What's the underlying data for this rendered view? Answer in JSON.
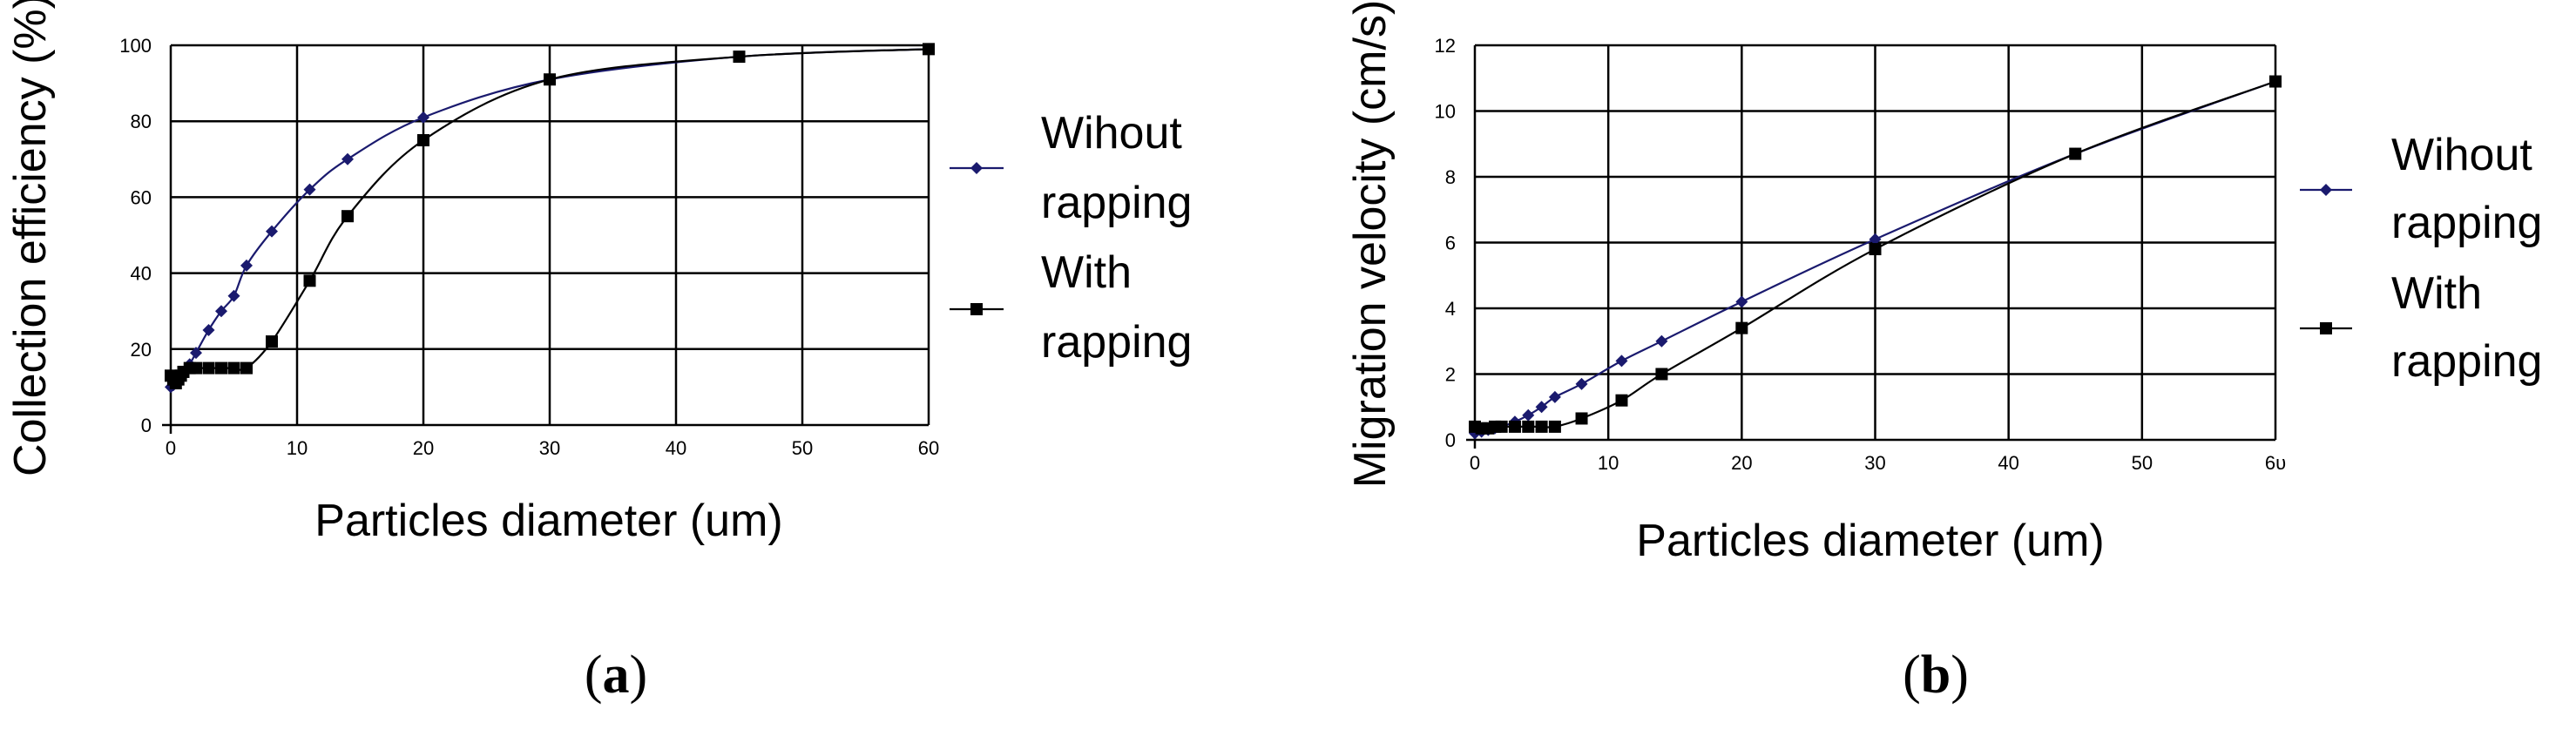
{
  "chart_data": [
    {
      "panel": "a",
      "type": "line",
      "xlabel": "Particles diameter (um)",
      "ylabel": "Collection efficiency (%)",
      "xlim": [
        0,
        60
      ],
      "ylim": [
        0,
        100
      ],
      "xticks": [
        0,
        10,
        20,
        30,
        40,
        50,
        60
      ],
      "xtick_labels": [
        "0",
        "10",
        "20",
        "30",
        "40",
        "50",
        "60"
      ],
      "yticks": [
        0,
        20,
        40,
        60,
        80,
        100
      ],
      "ytick_labels": [
        "0",
        "20",
        "40",
        "60",
        "80",
        "100"
      ],
      "grid": true,
      "legend_position": "right",
      "series": [
        {
          "name": "Wihout rapping",
          "name_lines": [
            "Wihout",
            "rapping"
          ],
          "color": "#1a1a6e",
          "marker": "diamond",
          "x": [
            0,
            0.2,
            0.4,
            0.6,
            0.8,
            1,
            1.5,
            2,
            3,
            4,
            5,
            6,
            8,
            11,
            14,
            20,
            30,
            45,
            60
          ],
          "y": [
            10,
            10.5,
            11,
            11.5,
            12.5,
            13.5,
            16,
            19,
            25,
            30,
            34,
            42,
            51,
            62,
            70,
            81,
            91,
            97,
            99
          ]
        },
        {
          "name": "With rapping",
          "name_lines": [
            "With",
            "rapping"
          ],
          "color": "#000000",
          "marker": "square",
          "x": [
            0,
            0.2,
            0.4,
            0.6,
            0.8,
            1,
            1.5,
            2,
            3,
            4,
            5,
            6,
            8,
            11,
            14,
            20,
            30,
            45,
            60
          ],
          "y": [
            13,
            12,
            11,
            12,
            13,
            14,
            15,
            15,
            15,
            15,
            15,
            15,
            22,
            38,
            55,
            75,
            91,
            97,
            99
          ]
        }
      ]
    },
    {
      "panel": "b",
      "type": "line",
      "xlabel": "Particles diameter (um)",
      "ylabel": "Migration velocity (cm/s)",
      "xlim": [
        0,
        60
      ],
      "ylim": [
        0,
        12
      ],
      "xticks": [
        0,
        10,
        20,
        30,
        40,
        50,
        60
      ],
      "xtick_labels": [
        "0",
        "10",
        "20",
        "30",
        "40",
        "50",
        "6υ"
      ],
      "yticks": [
        0,
        2,
        4,
        6,
        8,
        10,
        12
      ],
      "ytick_labels": [
        "0",
        "2",
        "4",
        "6",
        "8",
        "10",
        "12"
      ],
      "grid": true,
      "legend_position": "right",
      "series": [
        {
          "name": "Wihout rapping",
          "name_lines": [
            "Wihout",
            "rapping"
          ],
          "color": "#1a1a6e",
          "marker": "diamond",
          "x": [
            0,
            0.5,
            1,
            1.5,
            2,
            3,
            4,
            5,
            6,
            8,
            11,
            14,
            20,
            30,
            45,
            60
          ],
          "y": [
            0.2,
            0.25,
            0.3,
            0.35,
            0.4,
            0.55,
            0.75,
            1.0,
            1.3,
            1.7,
            2.4,
            3.0,
            4.2,
            6.1,
            8.7,
            10.9
          ]
        },
        {
          "name": "With rapping",
          "name_lines": [
            "With",
            "rapping"
          ],
          "color": "#000000",
          "marker": "square",
          "x": [
            0,
            0.5,
            1,
            1.5,
            2,
            3,
            4,
            5,
            6,
            8,
            11,
            14,
            20,
            30,
            45,
            60
          ],
          "y": [
            0.4,
            0.35,
            0.35,
            0.4,
            0.4,
            0.4,
            0.4,
            0.4,
            0.4,
            0.65,
            1.2,
            2.0,
            3.4,
            5.8,
            8.7,
            10.9
          ]
        }
      ]
    }
  ],
  "panel_labels": [
    {
      "open": "(",
      "letter": "a",
      "close": ")"
    },
    {
      "open": "(",
      "letter": "b",
      "close": ")"
    }
  ]
}
